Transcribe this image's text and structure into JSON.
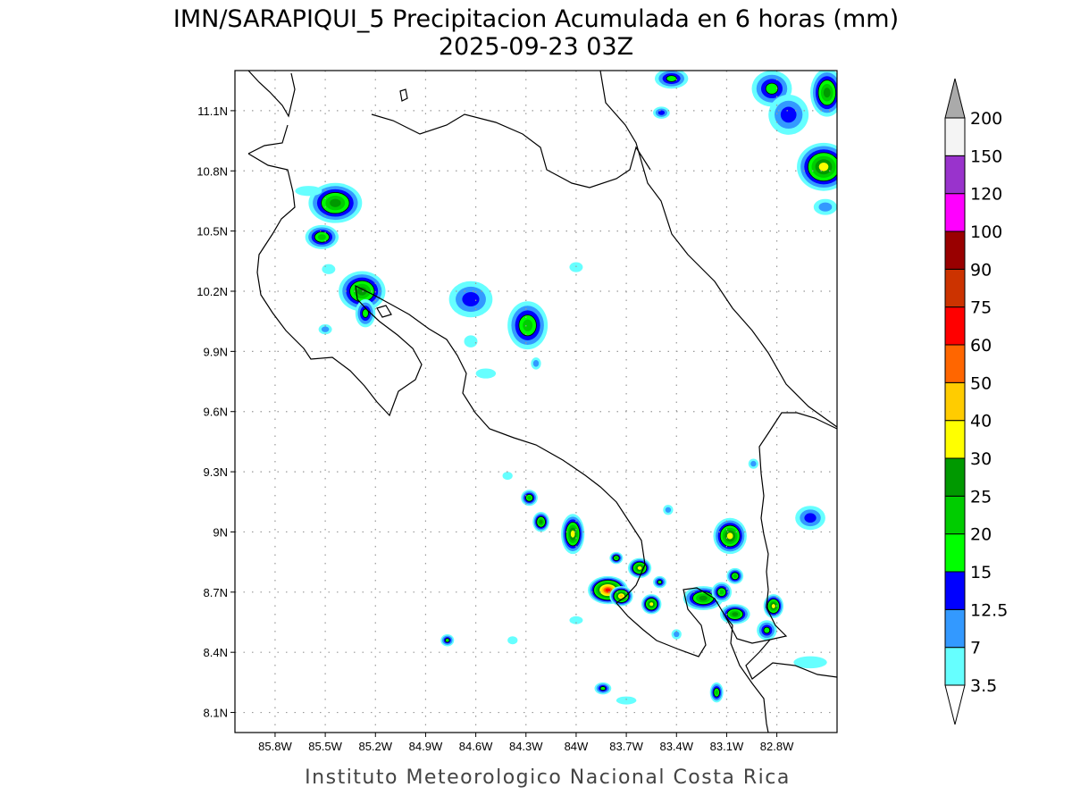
{
  "chart_data": {
    "type": "map-contour",
    "title": "IMN/SARAPIQUI_5 Precipitacion Acumulada en 6 horas (mm)",
    "subtitle": "2025-09-23 03Z",
    "footer": "Instituto Meteorologico Nacional Costa Rica",
    "x_ticks": [
      "85.8W",
      "85.5W",
      "85.2W",
      "84.9W",
      "84.6W",
      "84.3W",
      "84W",
      "83.7W",
      "83.4W",
      "83.1W",
      "82.8W"
    ],
    "x_tick_values": [
      -85.8,
      -85.5,
      -85.2,
      -84.9,
      -84.6,
      -84.3,
      -84.0,
      -83.7,
      -83.4,
      -83.1,
      -82.8
    ],
    "y_ticks": [
      "11.1N",
      "10.8N",
      "10.5N",
      "10.2N",
      "9.9N",
      "9.6N",
      "9.3N",
      "9N",
      "8.7N",
      "8.4N",
      "8.1N"
    ],
    "y_tick_values": [
      11.1,
      10.8,
      10.5,
      10.2,
      9.9,
      9.6,
      9.3,
      9.0,
      8.7,
      8.4,
      8.1
    ],
    "lon_range": [
      -86.04,
      -82.44
    ],
    "lat_range": [
      8.0,
      11.3
    ],
    "grid": true,
    "colorbar": {
      "labels": [
        "3.5",
        "7",
        "12.5",
        "15",
        "20",
        "25",
        "30",
        "40",
        "50",
        "60",
        "75",
        "90",
        "100",
        "120",
        "150",
        "200"
      ],
      "levels": [
        3.5,
        7,
        12.5,
        15,
        20,
        25,
        30,
        40,
        50,
        60,
        75,
        90,
        100,
        120,
        150,
        200
      ],
      "colors": [
        "#66ffff",
        "#3399ff",
        "#0000ff",
        "#00ff00",
        "#00cc00",
        "#009900",
        "#ffff00",
        "#ffcc00",
        "#ff6600",
        "#ff0000",
        "#cc3300",
        "#990000",
        "#ff00ff",
        "#9933cc",
        "#f4f4f4"
      ],
      "over_color": "#aaaaaa",
      "under_color": "#ffffff",
      "placement": "right"
    },
    "cells": [
      {
        "lon": -85.44,
        "lat": 10.64,
        "peak": 25,
        "sx": 0.16,
        "sy": 0.1
      },
      {
        "lon": -85.52,
        "lat": 10.47,
        "peak": 20,
        "sx": 0.1,
        "sy": 0.06
      },
      {
        "lon": -85.28,
        "lat": 10.2,
        "peak": 25,
        "sx": 0.14,
        "sy": 0.1
      },
      {
        "lon": -85.26,
        "lat": 10.09,
        "peak": 15,
        "sx": 0.06,
        "sy": 0.07
      },
      {
        "lon": -84.63,
        "lat": 10.16,
        "peak": 12.5,
        "sx": 0.13,
        "sy": 0.09
      },
      {
        "lon": -84.29,
        "lat": 10.03,
        "peak": 20,
        "sx": 0.12,
        "sy": 0.12
      },
      {
        "lon": -84.28,
        "lat": 9.17,
        "peak": 20,
        "sx": 0.05,
        "sy": 0.04
      },
      {
        "lon": -84.21,
        "lat": 9.05,
        "peak": 25,
        "sx": 0.05,
        "sy": 0.05
      },
      {
        "lon": -84.02,
        "lat": 8.99,
        "peak": 30,
        "sx": 0.07,
        "sy": 0.1
      },
      {
        "lon": -83.81,
        "lat": 8.71,
        "peak": 60,
        "sx": 0.12,
        "sy": 0.07
      },
      {
        "lon": -83.73,
        "lat": 8.68,
        "peak": 40,
        "sx": 0.07,
        "sy": 0.05
      },
      {
        "lon": -83.62,
        "lat": 8.82,
        "peak": 30,
        "sx": 0.07,
        "sy": 0.05
      },
      {
        "lon": -83.76,
        "lat": 8.87,
        "peak": 20,
        "sx": 0.04,
        "sy": 0.03
      },
      {
        "lon": -83.55,
        "lat": 8.64,
        "peak": 30,
        "sx": 0.06,
        "sy": 0.05
      },
      {
        "lon": -83.5,
        "lat": 8.75,
        "peak": 15,
        "sx": 0.04,
        "sy": 0.03
      },
      {
        "lon": -83.24,
        "lat": 8.67,
        "peak": 25,
        "sx": 0.12,
        "sy": 0.06
      },
      {
        "lon": -83.13,
        "lat": 8.7,
        "peak": 20,
        "sx": 0.06,
        "sy": 0.05
      },
      {
        "lon": -83.05,
        "lat": 8.59,
        "peak": 25,
        "sx": 0.09,
        "sy": 0.05
      },
      {
        "lon": -83.08,
        "lat": 8.98,
        "peak": 30,
        "sx": 0.1,
        "sy": 0.09
      },
      {
        "lon": -83.05,
        "lat": 8.78,
        "peak": 20,
        "sx": 0.05,
        "sy": 0.04
      },
      {
        "lon": -82.82,
        "lat": 8.63,
        "peak": 30,
        "sx": 0.06,
        "sy": 0.06
      },
      {
        "lon": -82.86,
        "lat": 8.51,
        "peak": 15,
        "sx": 0.06,
        "sy": 0.05
      },
      {
        "lon": -83.16,
        "lat": 8.2,
        "peak": 20,
        "sx": 0.04,
        "sy": 0.05
      },
      {
        "lon": -83.84,
        "lat": 8.22,
        "peak": 15,
        "sx": 0.05,
        "sy": 0.03
      },
      {
        "lon": -84.77,
        "lat": 8.46,
        "peak": 15,
        "sx": 0.04,
        "sy": 0.03
      },
      {
        "lon": -84.41,
        "lat": 9.28,
        "peak": 3.5,
        "sx": 0.03,
        "sy": 0.02
      },
      {
        "lon": -82.6,
        "lat": 9.07,
        "peak": 12.5,
        "sx": 0.09,
        "sy": 0.06
      },
      {
        "lon": -82.83,
        "lat": 11.21,
        "peak": 15,
        "sx": 0.12,
        "sy": 0.09
      },
      {
        "lon": -82.73,
        "lat": 11.08,
        "peak": 12.5,
        "sx": 0.12,
        "sy": 0.1
      },
      {
        "lon": -82.52,
        "lat": 10.82,
        "peak": 30,
        "sx": 0.16,
        "sy": 0.12
      },
      {
        "lon": -82.5,
        "lat": 11.19,
        "peak": 25,
        "sx": 0.1,
        "sy": 0.12
      },
      {
        "lon": -83.43,
        "lat": 11.26,
        "peak": 15,
        "sx": 0.1,
        "sy": 0.05
      },
      {
        "lon": -83.49,
        "lat": 11.09,
        "peak": 12.5,
        "sx": 0.05,
        "sy": 0.03
      },
      {
        "lon": -84.54,
        "lat": 9.79,
        "peak": 3.5,
        "sx": 0.06,
        "sy": 0.025
      },
      {
        "lon": -84.0,
        "lat": 10.32,
        "peak": 3.5,
        "sx": 0.04,
        "sy": 0.025
      },
      {
        "lon": -84.63,
        "lat": 9.95,
        "peak": 3.5,
        "sx": 0.04,
        "sy": 0.03
      },
      {
        "lon": -82.51,
        "lat": 10.62,
        "peak": 7,
        "sx": 0.07,
        "sy": 0.04
      },
      {
        "lon": -82.6,
        "lat": 8.35,
        "peak": 3.5,
        "sx": 0.1,
        "sy": 0.03
      },
      {
        "lon": -84.24,
        "lat": 9.84,
        "peak": 7,
        "sx": 0.03,
        "sy": 0.03
      },
      {
        "lon": -83.4,
        "lat": 8.49,
        "peak": 7,
        "sx": 0.03,
        "sy": 0.025
      },
      {
        "lon": -83.45,
        "lat": 9.11,
        "peak": 7,
        "sx": 0.03,
        "sy": 0.025
      },
      {
        "lon": -82.94,
        "lat": 9.34,
        "peak": 7,
        "sx": 0.03,
        "sy": 0.025
      },
      {
        "lon": -85.48,
        "lat": 10.31,
        "peak": 3.5,
        "sx": 0.04,
        "sy": 0.025
      },
      {
        "lon": -85.5,
        "lat": 10.01,
        "peak": 7,
        "sx": 0.04,
        "sy": 0.025
      },
      {
        "lon": -85.6,
        "lat": 10.7,
        "peak": 3.5,
        "sx": 0.08,
        "sy": 0.025
      },
      {
        "lon": -84.38,
        "lat": 8.46,
        "peak": 3.5,
        "sx": 0.03,
        "sy": 0.02
      },
      {
        "lon": -83.7,
        "lat": 8.16,
        "peak": 3.5,
        "sx": 0.06,
        "sy": 0.02
      },
      {
        "lon": -84.0,
        "lat": 8.56,
        "peak": 3.5,
        "sx": 0.04,
        "sy": 0.02
      }
    ]
  }
}
